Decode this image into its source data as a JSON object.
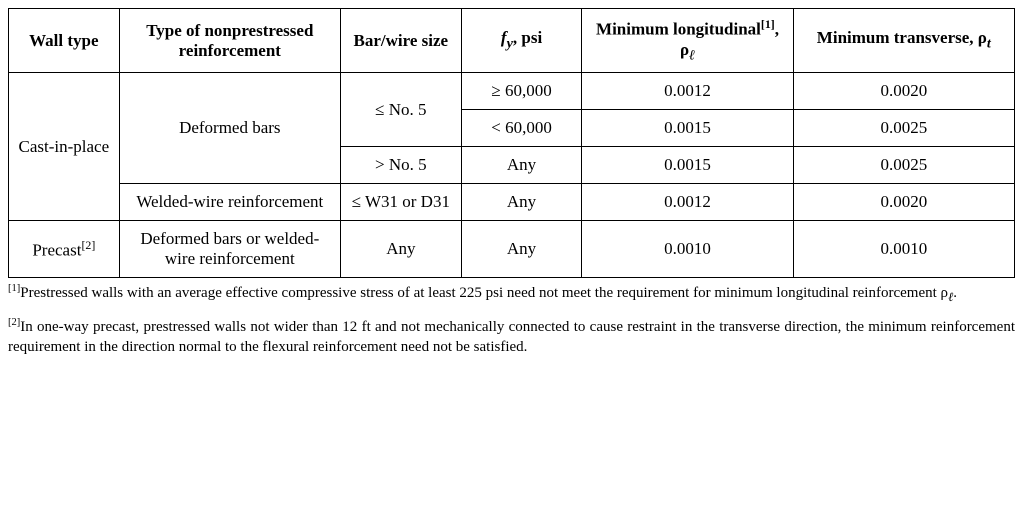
{
  "headers": {
    "wall_type": "Wall type",
    "reinforcement_type": "Type of nonprestressed reinforcement",
    "bar_size": "Bar/wire size",
    "fy_prefix": "f",
    "fy_sub": "y",
    "fy_suffix": ", psi",
    "min_long_prefix": "Minimum longitudinal",
    "min_long_sup": "[1]",
    "min_long_suffix": ", ρ",
    "min_long_sub": "ℓ",
    "min_trans_prefix": "Minimum transverse, ρ",
    "min_trans_sub": "t"
  },
  "rows": {
    "r1": {
      "wall_type": "Cast-in-place",
      "reinforcement": "Deformed bars",
      "bar_size": "≤ No. 5",
      "fy": "≥ 60,000",
      "long": "0.0012",
      "trans": "0.0020"
    },
    "r2": {
      "fy": "< 60,000",
      "long": "0.0015",
      "trans": "0.0025"
    },
    "r3": {
      "bar_size": "> No. 5",
      "fy": "Any",
      "long": "0.0015",
      "trans": "0.0025"
    },
    "r4": {
      "reinforcement": "Welded-wire reinforcement",
      "bar_size": "≤ W31 or D31",
      "fy": "Any",
      "long": "0.0012",
      "trans": "0.0020"
    },
    "r5": {
      "wall_type_prefix": "Precast",
      "wall_type_sup": "[2]",
      "reinforcement": "Deformed bars or welded-wire reinforcement",
      "bar_size": "Any",
      "fy": "Any",
      "long": "0.0010",
      "trans": "0.0010"
    }
  },
  "footnotes": {
    "f1_sup": "[1]",
    "f1_text": "Prestressed walls with an average effective compressive stress of at least 225 psi need not meet the requirement for minimum longitudinal reinforcement ρ",
    "f1_sub": "ℓ",
    "f1_end": ".",
    "f2_sup": "[2]",
    "f2_text": "In one-way precast, prestressed walls not wider than 12 ft and not mechanically connected to cause restraint in the transverse direction, the minimum reinforcement requirement in the direction normal to the flexural reinforcement need not be satisfied."
  }
}
